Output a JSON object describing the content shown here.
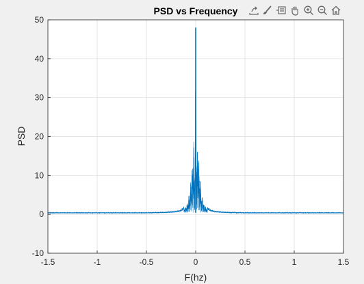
{
  "toolbar": {
    "icons": [
      "export-icon",
      "brush-icon",
      "datatip-icon",
      "pan-icon",
      "zoom-in-icon",
      "zoom-out-icon",
      "home-icon"
    ]
  },
  "colors": {
    "line": "#0072bd",
    "grid": "#dcdcdc",
    "axes_bg": "#ffffff",
    "figure_bg": "#f0f0f0",
    "text": "#262626"
  },
  "chart_data": {
    "type": "line",
    "title": "PSD vs Frequency",
    "xlabel": "F(hz)",
    "ylabel": "PSD",
    "xlim": [
      -1.5,
      1.5
    ],
    "ylim": [
      -10,
      50
    ],
    "xticks": [
      "-1.5",
      "-1",
      "-0.5",
      "0",
      "0.5",
      "1",
      "1.5"
    ],
    "yticks": [
      "-10",
      "0",
      "10",
      "20",
      "30",
      "40",
      "50"
    ],
    "grid": true,
    "series": [
      {
        "x": [
          -1.5,
          -1.0,
          -0.5,
          -0.3,
          -0.2,
          -0.15,
          -0.12,
          -0.1,
          -0.08,
          -0.06,
          -0.05,
          -0.04,
          -0.03,
          -0.02,
          -0.01,
          0,
          0.01,
          0.02,
          0.03,
          0.04,
          0.05,
          0.06,
          0.08,
          0.1,
          0.12,
          0.15,
          0.2,
          0.3,
          0.5,
          1.0,
          1.5
        ],
        "y": [
          0.4,
          0.4,
          0.4,
          0.5,
          0.7,
          1.0,
          1.6,
          2.0,
          3.5,
          6.0,
          9.0,
          12.0,
          15.5,
          20.0,
          10.0,
          48.0,
          13.0,
          20.0,
          15.5,
          11.0,
          8.5,
          5.5,
          3.0,
          2.0,
          1.6,
          1.0,
          0.7,
          0.5,
          0.4,
          0.4,
          0.4
        ]
      }
    ]
  }
}
